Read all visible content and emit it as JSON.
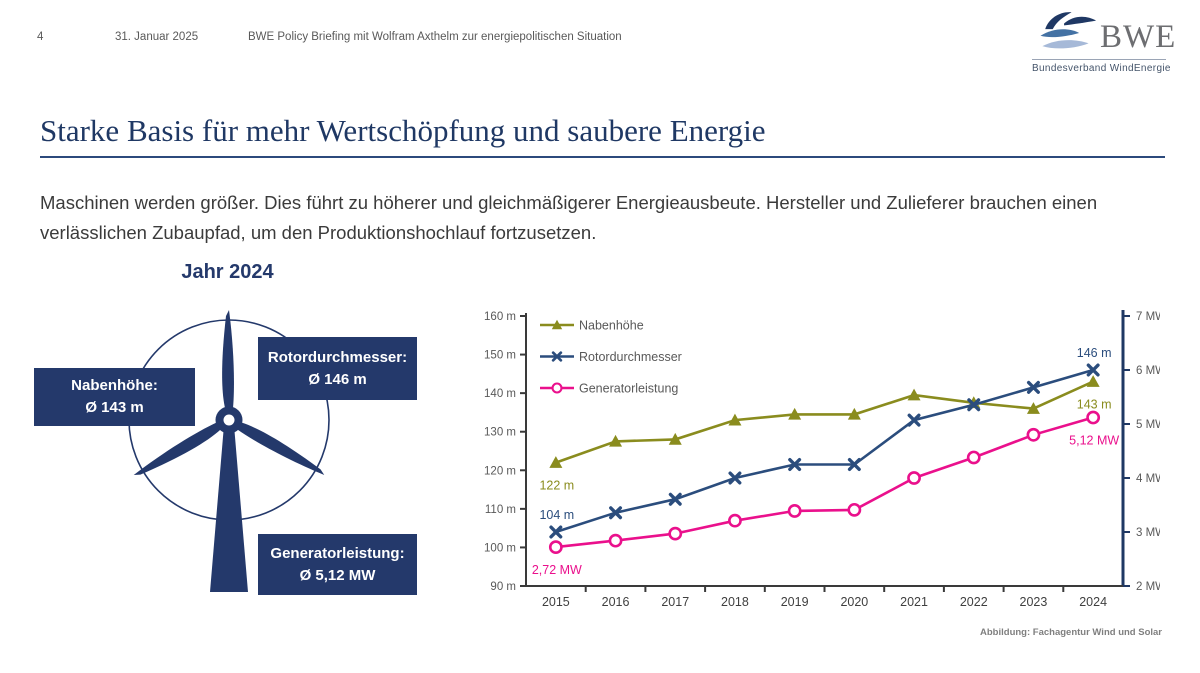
{
  "header": {
    "page_number": "4",
    "date": "31. Januar 2025",
    "briefing": "BWE Policy Briefing mit Wolfram Axthelm zur energiepolitischen Situation"
  },
  "logo": {
    "acronym": "BWE",
    "subtitle": "Bundesverband WindEnergie"
  },
  "title": "Starke Basis für mehr Wertschöpfung und saubere Energie",
  "intro": "Maschinen werden größer. Dies führt zu höherer und gleichmäßigerer Energieausbeute. Hersteller und Zulieferer brauchen einen verlässlichen Zubaupfad, um den Produktionshochlauf fortzusetzen.",
  "diagram": {
    "title": "Jahr 2024",
    "labels": {
      "hub": {
        "line1": "Nabenhöhe:",
        "line2": "Ø 143 m"
      },
      "rotor": {
        "line1": "Rotordurchmesser:",
        "line2": "Ø 146 m"
      },
      "generator": {
        "line1": "Generatorleistung:",
        "line2": "Ø 5,12 MW"
      }
    }
  },
  "chart_data": {
    "type": "line",
    "x": [
      2015,
      2016,
      2017,
      2018,
      2019,
      2020,
      2021,
      2022,
      2023,
      2024
    ],
    "series": [
      {
        "name": "Nabenhöhe",
        "axis": "left",
        "unit": "m",
        "color": "#8a8c1e",
        "marker": "triangle",
        "values": [
          122,
          127.5,
          128,
          133,
          134.5,
          134.5,
          139.5,
          137.5,
          136,
          143
        ]
      },
      {
        "name": "Rotordurchmesser",
        "axis": "left",
        "unit": "m",
        "color": "#2b4d7d",
        "marker": "x",
        "values": [
          104,
          109,
          112.5,
          118,
          121.5,
          121.5,
          133,
          137,
          141.5,
          146
        ]
      },
      {
        "name": "Generatorleistung",
        "axis": "right",
        "unit": "MW",
        "color": "#ea108c",
        "marker": "circle",
        "values": [
          2.72,
          2.84,
          2.97,
          3.21,
          3.39,
          3.41,
          4.0,
          4.38,
          4.8,
          5.12
        ]
      }
    ],
    "left_axis": {
      "min": 90,
      "max": 160,
      "step": 10,
      "suffix": " m"
    },
    "right_axis": {
      "min": 2,
      "max": 7,
      "step": 1,
      "suffix": " MW"
    },
    "annotations": [
      {
        "series": 0,
        "x": 2015,
        "text": "122 m",
        "placement": "below"
      },
      {
        "series": 1,
        "x": 2015,
        "text": "104 m",
        "placement": "above"
      },
      {
        "series": 2,
        "x": 2015,
        "text": "2,72 MW",
        "placement": "below"
      },
      {
        "series": 1,
        "x": 2024,
        "text": "146 m",
        "placement": "above"
      },
      {
        "series": 0,
        "x": 2024,
        "text": "143 m",
        "placement": "below"
      },
      {
        "series": 2,
        "x": 2024,
        "text": "5,12 MW",
        "placement": "below"
      }
    ],
    "legend_position": "top-left",
    "grid": false
  },
  "caption": "Abbildung: Fachagentur Wind und Solar",
  "colors": {
    "navy": "#24396b",
    "title_blue": "#1f3864",
    "axis_dark": "#3a3a3a",
    "tick_text": "#595959",
    "year_text": "#3f3f3f"
  }
}
